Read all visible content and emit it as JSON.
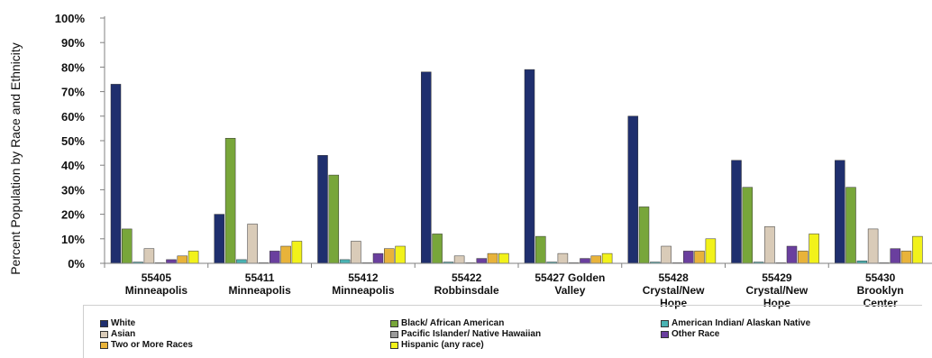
{
  "chart_data": {
    "type": "bar",
    "title": "",
    "xlabel": "",
    "ylabel": "Percent Population by Race and Ethnicity",
    "ylim": [
      0,
      100
    ],
    "yticks": [
      "0%",
      "10%",
      "20%",
      "30%",
      "40%",
      "50%",
      "60%",
      "70%",
      "80%",
      "90%",
      "100%"
    ],
    "grid": false,
    "legend_position": "bottom",
    "categories": [
      [
        "55405",
        "Minneapolis"
      ],
      [
        "55411",
        "Minneapolis"
      ],
      [
        "55412",
        "Minneapolis"
      ],
      [
        "55422",
        "Robbinsdale"
      ],
      [
        "55427 Golden",
        "Valley"
      ],
      [
        "55428",
        "Crystal/New",
        "Hope"
      ],
      [
        "55429",
        "Crystal/New",
        "Hope"
      ],
      [
        "55430",
        "Brooklyn",
        "Center"
      ]
    ],
    "series": [
      {
        "name": "White",
        "color": "#1f2f6e",
        "values": [
          73,
          20,
          44,
          78,
          79,
          60,
          42,
          42
        ]
      },
      {
        "name": "Black/ African American",
        "color": "#78a63a",
        "values": [
          14,
          51,
          36,
          12,
          11,
          23,
          31,
          31
        ]
      },
      {
        "name": "American Indian/ Alaskan Native",
        "color": "#4ab3b3",
        "values": [
          0.5,
          1.5,
          1.5,
          0.5,
          0.5,
          0.5,
          0.5,
          1
        ]
      },
      {
        "name": "Asian",
        "color": "#d9cbb8",
        "values": [
          6,
          16,
          9,
          3,
          4,
          7,
          15,
          14
        ]
      },
      {
        "name": "Pacific Islander/ Native Hawaiian",
        "color": "#9a9a9a",
        "values": [
          0.2,
          0.2,
          0.2,
          0.2,
          0.2,
          0.2,
          0.2,
          0.2
        ]
      },
      {
        "name": "Other Race",
        "color": "#6a3f9e",
        "values": [
          1.5,
          5,
          4,
          2,
          2,
          5,
          7,
          6
        ]
      },
      {
        "name": "Two or More Races",
        "color": "#e8b33a",
        "values": [
          3,
          7,
          6,
          4,
          3,
          5,
          5,
          5
        ]
      },
      {
        "name": "Hispanic (any race)",
        "color": "#f2f21a",
        "values": [
          5,
          9,
          7,
          4,
          4,
          10,
          12,
          11
        ]
      }
    ]
  }
}
